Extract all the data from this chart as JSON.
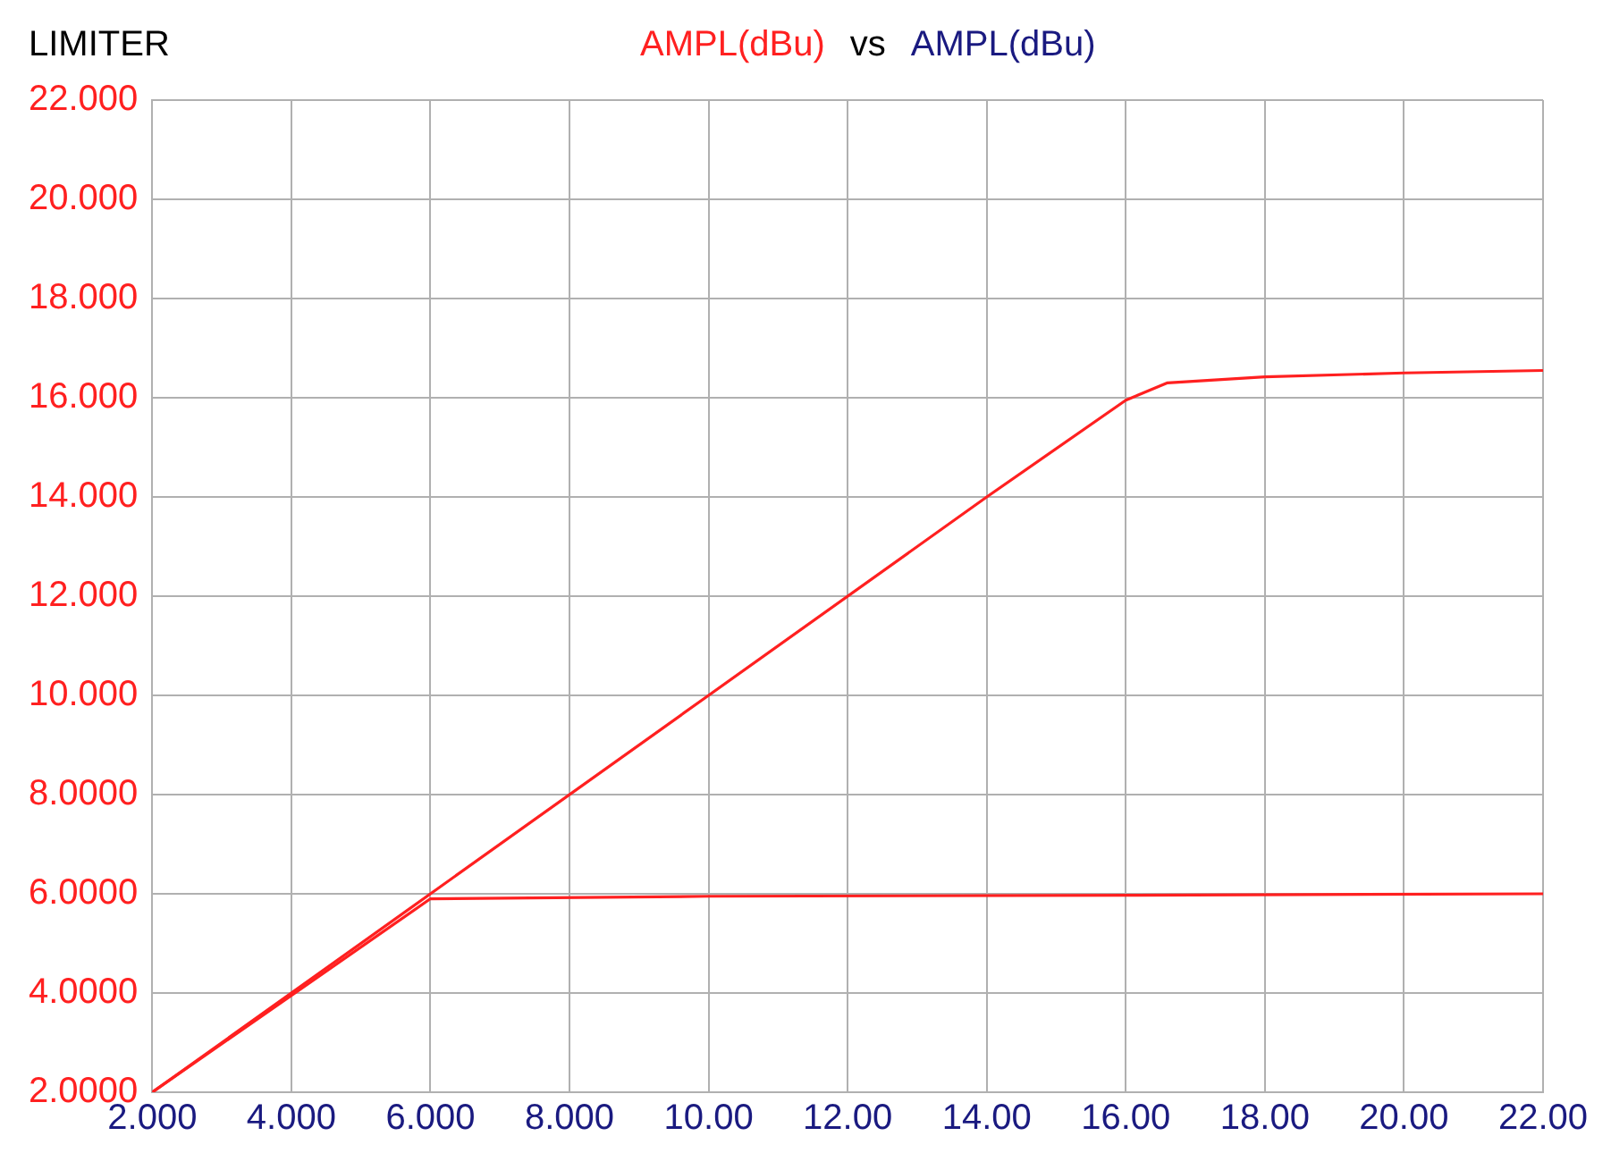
{
  "chart_data": {
    "type": "line",
    "title": "LIMITER",
    "ylabel": "AMPL(dBu)",
    "xlabel": "AMPL(dBu)",
    "annotations": [
      "vs"
    ],
    "series": [
      {
        "color": "#ff2020",
        "x": [
          2,
          6,
          10,
          14,
          16,
          16.6,
          18,
          20,
          22
        ],
        "values": [
          2,
          6,
          10,
          14,
          15.95,
          16.3,
          16.42,
          16.5,
          16.55
        ]
      },
      {
        "color": "#ff2020",
        "x": [
          2,
          6,
          10,
          16,
          22
        ],
        "values": [
          2,
          5.9,
          5.95,
          5.97,
          6.0
        ]
      }
    ],
    "xlim": [
      2,
      22
    ],
    "xticks": [
      {
        "value": 2,
        "label": "2.000"
      },
      {
        "value": 4,
        "label": "4.000"
      },
      {
        "value": 6,
        "label": "6.000"
      },
      {
        "value": 8,
        "label": "8.000"
      },
      {
        "value": 10,
        "label": "10.00"
      },
      {
        "value": 12,
        "label": "12.00"
      },
      {
        "value": 14,
        "label": "14.00"
      },
      {
        "value": 16,
        "label": "16.00"
      },
      {
        "value": 18,
        "label": "18.00"
      },
      {
        "value": 20,
        "label": "20.00"
      },
      {
        "value": 22,
        "label": "22.00"
      }
    ],
    "ylim": [
      2,
      22
    ],
    "yticks": [
      {
        "value": 2,
        "label": "2.0000"
      },
      {
        "value": 4,
        "label": "4.0000"
      },
      {
        "value": 6,
        "label": "6.0000"
      },
      {
        "value": 8,
        "label": "8.0000"
      },
      {
        "value": 10,
        "label": "10.000"
      },
      {
        "value": 12,
        "label": "12.000"
      },
      {
        "value": 14,
        "label": "14.000"
      },
      {
        "value": 16,
        "label": "16.000"
      },
      {
        "value": 18,
        "label": "18.000"
      },
      {
        "value": 20,
        "label": "20.000"
      },
      {
        "value": 22,
        "label": "22.000"
      }
    ],
    "grid": true,
    "marker": "none",
    "line_style": "solid",
    "legend": false
  }
}
